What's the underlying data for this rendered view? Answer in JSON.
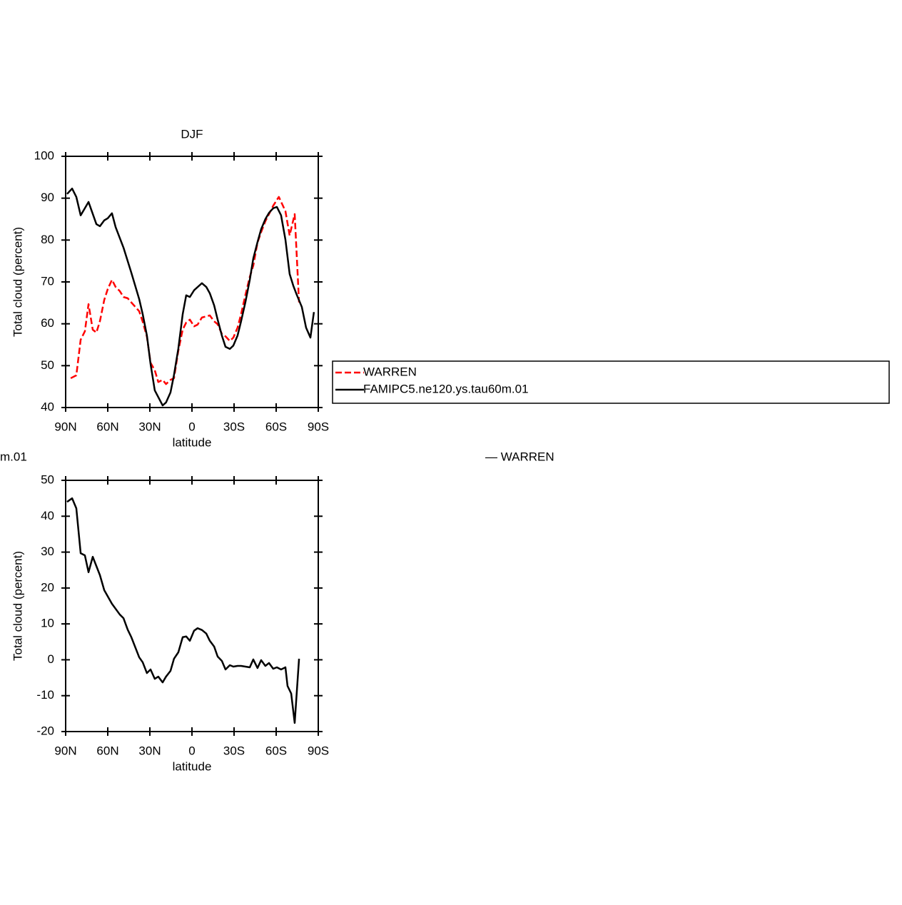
{
  "chart_data": [
    {
      "type": "line",
      "title": "DJF",
      "x_label": "latitude",
      "y_label": "Total  cloud  (percent)",
      "xlim": [
        90,
        -90
      ],
      "xticks": [
        {
          "value": 90,
          "label": "90N"
        },
        {
          "value": 60,
          "label": "60N"
        },
        {
          "value": 30,
          "label": "30N"
        },
        0,
        {
          "value": -30,
          "label": "30S"
        },
        {
          "value": -60,
          "label": "60S"
        },
        {
          "value": -90,
          "label": "90S"
        }
      ],
      "ylim": [
        40,
        100
      ],
      "yticks": [
        40,
        50,
        60,
        70,
        80,
        90,
        100
      ],
      "legend": true,
      "series": [
        {
          "name": "WARREN",
          "color": "#ff0000",
          "dashed": true,
          "x": [
            86.4,
            82.4,
            79.3,
            76.3,
            73.7,
            70.7,
            68.1,
            65.6,
            62.5,
            60,
            57,
            54.4,
            51.4,
            48.8,
            45.8,
            43.2,
            37.6,
            35.1,
            32.1,
            29.5,
            26.5,
            24,
            20.9,
            18.5,
            15.3,
            12.8,
            9.7,
            6.6,
            4.1,
            1.5,
            -1.5,
            -4,
            -7.1,
            -12.7,
            -15.8,
            -18.3,
            -21.3,
            -23.9,
            -27,
            -29.5,
            -32.5,
            -35,
            -38.1,
            -41.2,
            -43.7,
            -46.7,
            -49.3,
            -52.3,
            -54.9,
            -57.9,
            -61.9,
            -66.6,
            -69.6,
            -73.2,
            -76.3
          ],
          "values": [
            47.0,
            47.7,
            56.2,
            58.2,
            64.7,
            58.6,
            57.9,
            60.6,
            65.7,
            68.3,
            70.5,
            68.8,
            67.8,
            66.4,
            66.1,
            65.1,
            63.0,
            60.5,
            56.9,
            50.7,
            48.9,
            46.1,
            46.6,
            45.6,
            46.6,
            47.0,
            53.6,
            58.6,
            60.3,
            61.0,
            59.4,
            59.8,
            61.5,
            62.0,
            60.6,
            59.9,
            57.6,
            57.0,
            55.9,
            56.7,
            59.1,
            62.3,
            66.9,
            71.2,
            73.9,
            79.4,
            81.9,
            84.5,
            86.2,
            88.2,
            90.3,
            86.9,
            81.1,
            86.2,
            65.1
          ]
        },
        {
          "name": "FAMIPC5.ne120.ys.tau60m.01",
          "color": "#000000",
          "dashed": false,
          "x": [
            89,
            85.4,
            82.4,
            79.3,
            73.7,
            68.1,
            65.6,
            62.5,
            60,
            57,
            54.4,
            48.8,
            43.2,
            37.6,
            35.1,
            32.1,
            29.5,
            26.5,
            20.9,
            18.5,
            15.3,
            12.8,
            9.7,
            6.6,
            4.1,
            1.5,
            -1.5,
            -7.1,
            -10.2,
            -12.7,
            -15.8,
            -18.3,
            -21.3,
            -23.9,
            -27,
            -29.5,
            -32.5,
            -35,
            -38.1,
            -41.2,
            -43.7,
            -46.7,
            -49.3,
            -52.3,
            -54.9,
            -57.9,
            -60.5,
            -63.5,
            -66.6,
            -69.6,
            -72.2,
            -74.7,
            -78.3,
            -81.3,
            -84.4,
            -86.9
          ],
          "values": [
            91.0,
            92.3,
            90.3,
            85.9,
            89.1,
            83.8,
            83.3,
            84.7,
            85.2,
            86.4,
            83.1,
            78.2,
            72.2,
            65.9,
            62.3,
            57.2,
            50.4,
            44.1,
            40.5,
            41.2,
            43.6,
            47.8,
            54.1,
            62.3,
            66.8,
            66.4,
            68.0,
            69.7,
            68.8,
            67.3,
            64.4,
            61.0,
            57.2,
            54.5,
            54.0,
            54.8,
            57.2,
            60.6,
            65.2,
            70.5,
            75.6,
            79.5,
            82.6,
            85.0,
            86.5,
            87.6,
            87.9,
            85.9,
            80.1,
            71.9,
            69.1,
            66.9,
            64.0,
            59.1,
            56.7,
            62.8
          ]
        }
      ]
    },
    {
      "type": "line",
      "x_label": "latitude",
      "y_label": "Total  cloud  (percent)",
      "annotations": [
        "m.01",
        "— WARREN"
      ],
      "xlim": [
        90,
        -90
      ],
      "xticks": [
        {
          "value": 90,
          "label": "90N"
        },
        {
          "value": 60,
          "label": "60N"
        },
        {
          "value": 30,
          "label": "30N"
        },
        0,
        {
          "value": -30,
          "label": "30S"
        },
        {
          "value": -60,
          "label": "60S"
        },
        {
          "value": -90,
          "label": "90S"
        }
      ],
      "ylim": [
        -20,
        50
      ],
      "yticks": [
        -20,
        -10,
        0,
        10,
        20,
        30,
        40,
        50
      ],
      "legend": false,
      "series": [
        {
          "color": "#000000",
          "dashed": false,
          "x": [
            89,
            85.4,
            82.4,
            79.3,
            76.3,
            73.7,
            70.7,
            65.6,
            62.5,
            57,
            51.4,
            48.8,
            45.8,
            43.2,
            37.6,
            35.1,
            32.1,
            29.5,
            26.5,
            24,
            20.9,
            18.5,
            15.3,
            12.8,
            9.7,
            6.6,
            4.1,
            1.5,
            -1.5,
            -4,
            -7.1,
            -10.2,
            -12.7,
            -15.8,
            -18.3,
            -21.3,
            -23.9,
            -27,
            -29.5,
            -32.5,
            -35,
            -38.1,
            -41.2,
            -43.7,
            -46.7,
            -49.3,
            -52.3,
            -54.9,
            -57.9,
            -60.5,
            -63.5,
            -66.6,
            -68.1,
            -70.7,
            -73.2,
            -76.3
          ],
          "values": [
            44.0,
            45.0,
            42.2,
            29.7,
            29.1,
            24.4,
            28.7,
            23.6,
            19.4,
            15.6,
            12.6,
            11.6,
            8.4,
            6.3,
            0.7,
            -0.7,
            -3.7,
            -2.7,
            -5.3,
            -4.7,
            -6.3,
            -4.7,
            -3.1,
            0.3,
            2.1,
            6.3,
            6.5,
            5.3,
            8.1,
            8.8,
            8.3,
            7.3,
            5.3,
            3.7,
            0.9,
            -0.3,
            -2.7,
            -1.5,
            -1.9,
            -1.7,
            -1.7,
            -1.9,
            -2.1,
            0.1,
            -2.3,
            -0.1,
            -1.7,
            -0.9,
            -2.5,
            -2.1,
            -2.7,
            -2.1,
            -7.3,
            -9.4,
            -17.6,
            0.3
          ]
        }
      ]
    }
  ]
}
